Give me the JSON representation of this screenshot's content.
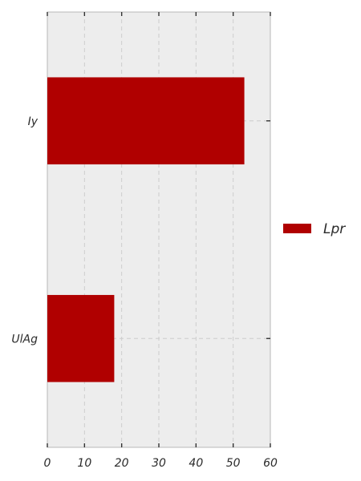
{
  "chart_data": {
    "type": "bar",
    "orientation": "horizontal",
    "categories": [
      "Iy",
      "UlAg"
    ],
    "series": [
      {
        "name": "Lpr",
        "values": [
          53,
          18
        ],
        "color": "#b00000"
      }
    ],
    "xlim": [
      0,
      60
    ],
    "x_ticks": [
      0,
      10,
      20,
      30,
      40,
      50,
      60
    ],
    "grid": true,
    "legend_position": "right",
    "background_color": "#ededed"
  }
}
